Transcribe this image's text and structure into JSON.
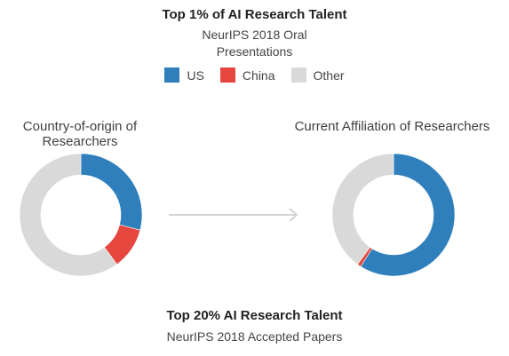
{
  "header": {
    "title": "Top 1% of AI Research Talent",
    "subtitle_line1": "NeurIPS 2018 Oral",
    "subtitle_line2": "Presentations"
  },
  "footer": {
    "title": "Top 20% AI Research Talent",
    "subtitle": "NeurIPS 2018 Accepted Papers"
  },
  "colors": {
    "US": "#2e7fbc",
    "China": "#e5463d",
    "Other": "#d9d9d9",
    "arrow": "#d4d4d4"
  },
  "chart_data": [
    {
      "type": "pie",
      "title_line1": "Country-of-origin of",
      "title_line2": "Researchers",
      "categories": [
        "US",
        "China",
        "Other"
      ],
      "values": [
        29,
        11,
        60
      ],
      "legend": [
        "US",
        "China",
        "Other"
      ],
      "legend_position": "top"
    },
    {
      "type": "pie",
      "title_line1": "Current Affiliation of Researchers",
      "title_line2": "",
      "categories": [
        "US",
        "China",
        "Other"
      ],
      "values": [
        59,
        1,
        40
      ],
      "legend": [
        "US",
        "China",
        "Other"
      ],
      "legend_position": "top"
    }
  ]
}
